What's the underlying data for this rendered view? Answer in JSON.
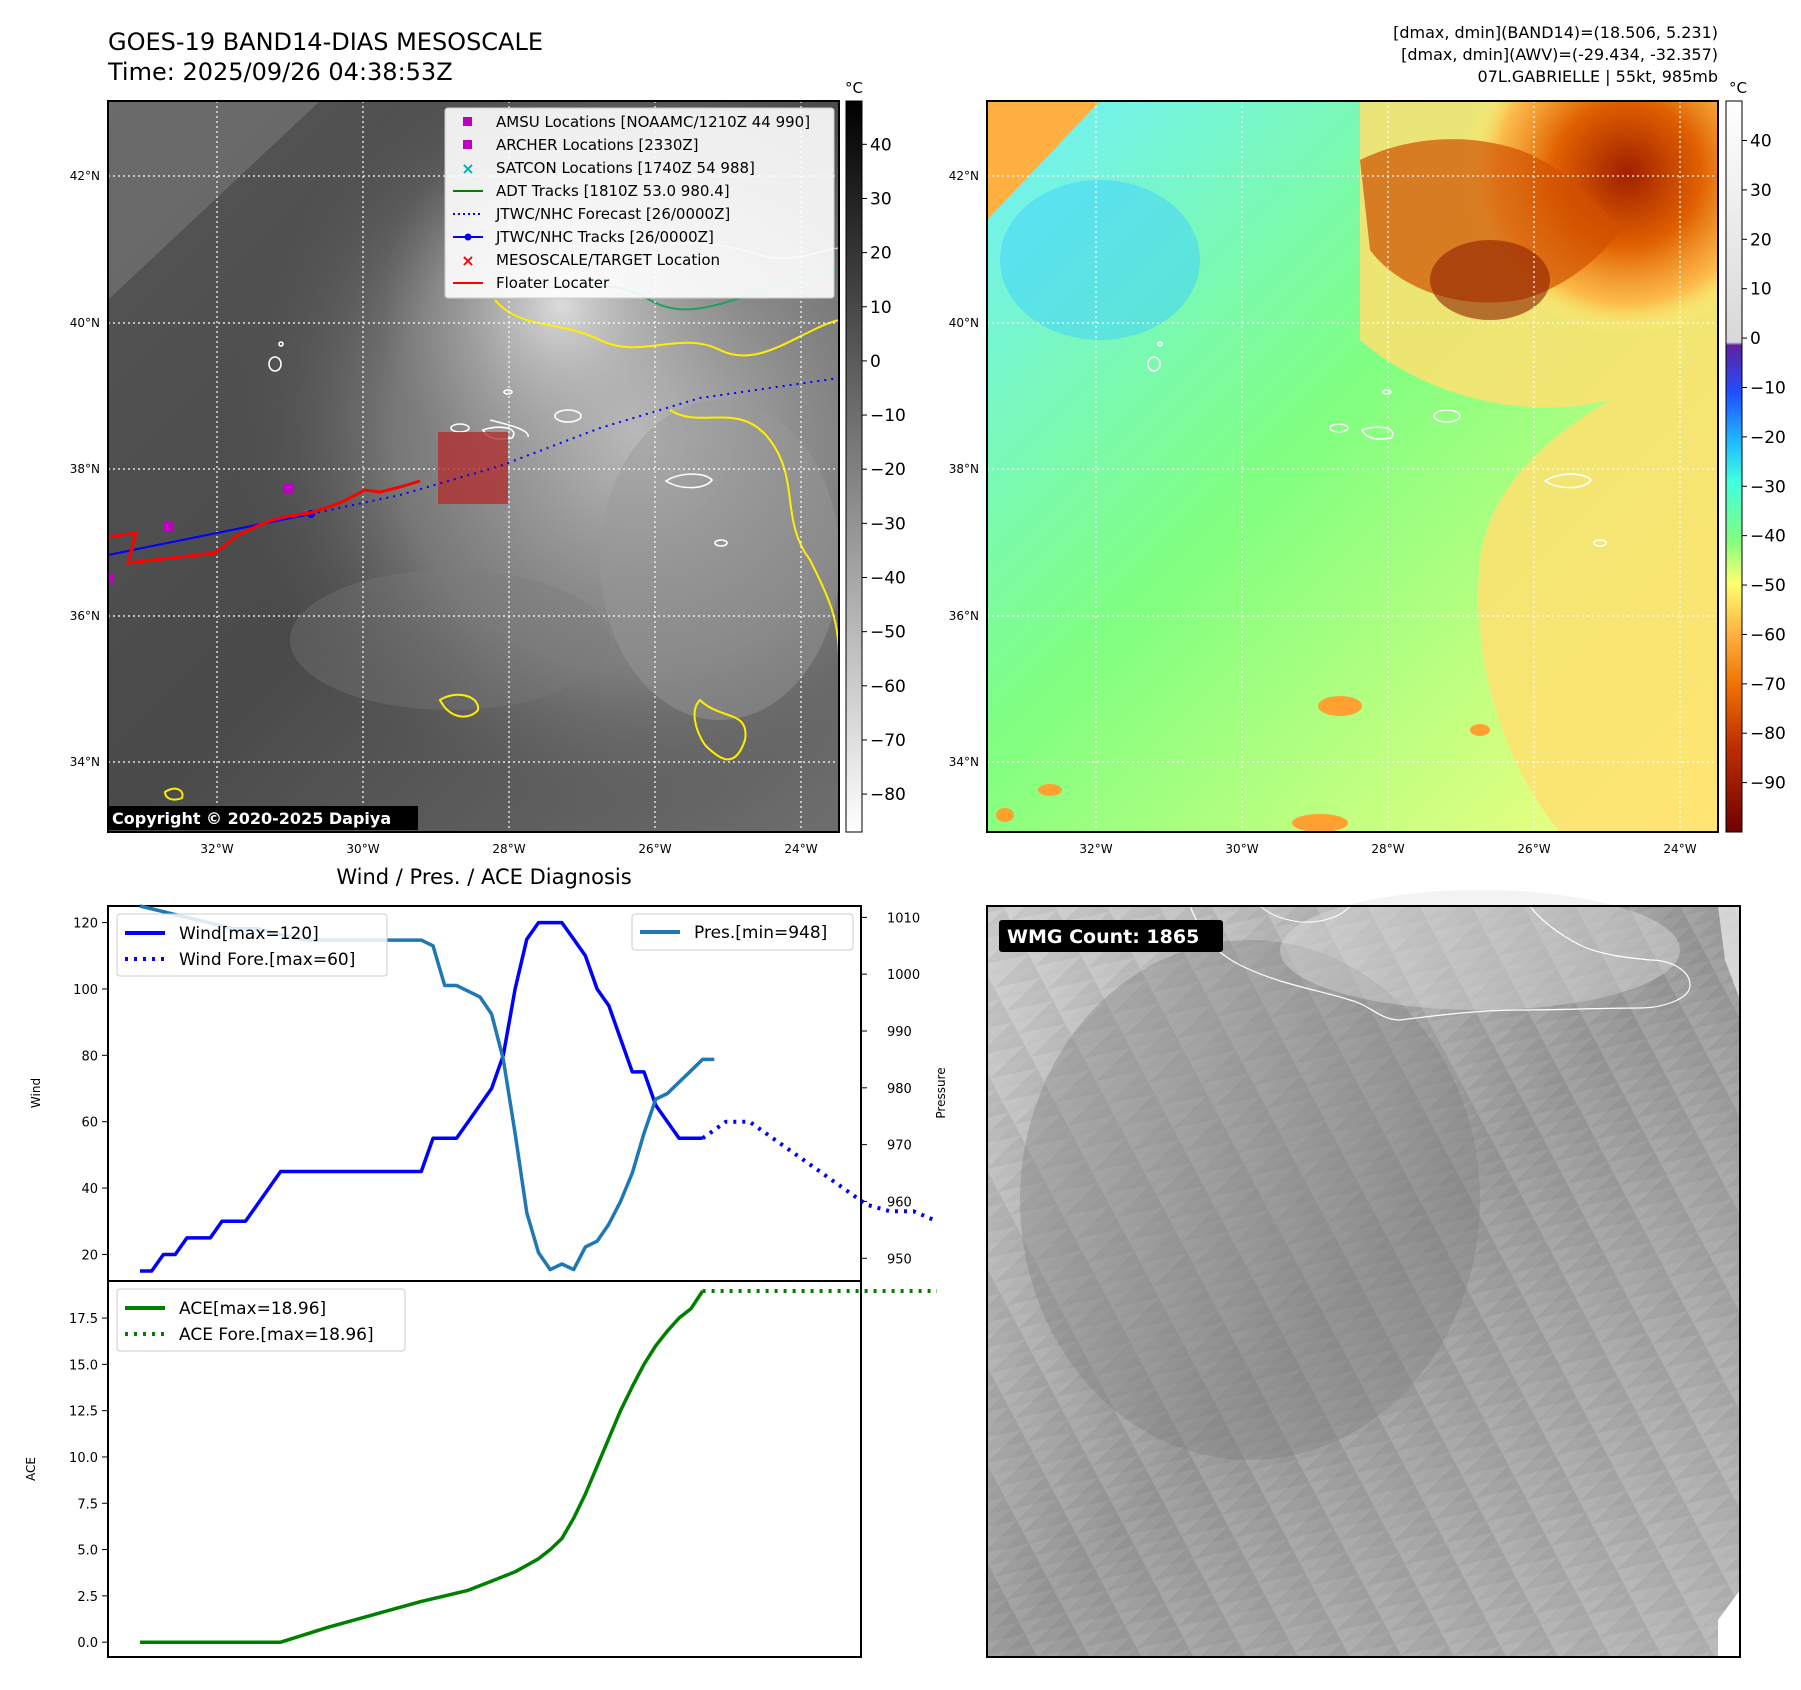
{
  "header": {
    "title_line1": "GOES-19 BAND14-DIAS MESOSCALE",
    "title_line2": "Time: 2025/09/26 04:38:53Z",
    "info_line1": "[dmax, dmin](BAND14)=(18.506, 5.231)",
    "info_line2": "[dmax, dmin](AWV)=(-29.434, -32.357)",
    "info_line3": "07L.GABRIELLE | 55kt, 985mb"
  },
  "map_axes": {
    "lon_ticks": [
      "32°W",
      "30°W",
      "28°W",
      "26°W",
      "24°W"
    ],
    "lat_ticks": [
      "42°N",
      "40°N",
      "38°N",
      "36°N",
      "34°N"
    ]
  },
  "colorbar_left": {
    "unit": "°C",
    "ticks": [
      "40",
      "30",
      "20",
      "10",
      "0",
      "−10",
      "−20",
      "−30",
      "−40",
      "−50",
      "−60",
      "−70",
      "−80"
    ]
  },
  "colorbar_right": {
    "unit": "°C",
    "ticks": [
      "40",
      "30",
      "20",
      "10",
      "0",
      "−10",
      "−20",
      "−30",
      "−40",
      "−50",
      "−60",
      "−70",
      "−80",
      "−90"
    ]
  },
  "legend": {
    "items": [
      {
        "label": "AMSU Locations [NOAAMC/1210Z 44 990]",
        "color": "#c000c0",
        "marker": "square"
      },
      {
        "label": "ARCHER Locations [2330Z]",
        "color": "#c000c0",
        "marker": "square"
      },
      {
        "label": "SATCON Locations [1740Z 54 988]",
        "color": "#00b0b0",
        "marker": "x"
      },
      {
        "label": "ADT Tracks [1810Z 53.0 980.4]",
        "color": "#008000",
        "marker": "line"
      },
      {
        "label": "JTWC/NHC Forecast [26/0000Z]",
        "color": "#0000ff",
        "marker": "dotted"
      },
      {
        "label": "JTWC/NHC Tracks [26/0000Z]",
        "color": "#0000ff",
        "marker": "line-dot"
      },
      {
        "label": "MESOSCALE/TARGET Location",
        "color": "#ff0000",
        "marker": "x"
      },
      {
        "label": "Floater Locater",
        "color": "#ff0000",
        "marker": "line"
      }
    ]
  },
  "copyright": "Copyright © 2020-2025 Dapiya",
  "wmg": {
    "label": "WMG Count: 1865"
  },
  "chart_data": [
    {
      "type": "line",
      "title": "Wind / Pres. / ACE Diagnosis",
      "ylabel": "Wind",
      "ylabel_right": "Pressure",
      "ylim": [
        12,
        125
      ],
      "ylim_right": [
        946,
        1012
      ],
      "xlim": [
        0,
        34
      ],
      "yticks": [
        20,
        40,
        60,
        80,
        100,
        120
      ],
      "yticks_right": [
        950,
        960,
        970,
        980,
        990,
        1000,
        1010
      ],
      "legend_left": [
        "Wind[max=120]",
        "Wind Fore.[max=60]"
      ],
      "legend_right": [
        "Pres.[min=948]"
      ],
      "series": [
        {
          "name": "Wind[max=120]",
          "color": "#0000ff",
          "style": "solid",
          "x": [
            0,
            0.5,
            1,
            1.5,
            2,
            2.5,
            3,
            3.5,
            4,
            4.5,
            5,
            5.5,
            6,
            6.5,
            7,
            7.5,
            8,
            8.5,
            9,
            9.5,
            10,
            10.5,
            11,
            11.5,
            12,
            12.5,
            13,
            13.5,
            14,
            14.5,
            15,
            15.5,
            16,
            16.5,
            17,
            17.5,
            18,
            18.5,
            19,
            19.5,
            20,
            20.5,
            21,
            21.5,
            22,
            22.5,
            23,
            23.5,
            24
          ],
          "values": [
            15,
            15,
            20,
            20,
            25,
            25,
            25,
            30,
            30,
            30,
            35,
            40,
            45,
            45,
            45,
            45,
            45,
            45,
            45,
            45,
            45,
            45,
            45,
            45,
            45,
            55,
            55,
            55,
            60,
            65,
            70,
            80,
            100,
            115,
            120,
            120,
            120,
            115,
            110,
            100,
            95,
            85,
            75,
            75,
            65,
            60,
            55,
            55,
            55
          ]
        },
        {
          "name": "Wind Fore.[max=60]",
          "color": "#0000ff",
          "style": "dotted",
          "x": [
            24,
            25,
            26,
            27,
            28,
            29,
            30,
            31,
            32,
            33,
            34
          ],
          "values": [
            55,
            60,
            60,
            55,
            50,
            45,
            40,
            35,
            33,
            33,
            30
          ]
        },
        {
          "name": "Pres.[min=948]",
          "color": "#1f77b4",
          "style": "solid",
          "axis": "right",
          "x": [
            0,
            1,
            2,
            3,
            4,
            5,
            6,
            7,
            8,
            9,
            10,
            11,
            12,
            12.5,
            13,
            13.5,
            14,
            14.5,
            15,
            15.5,
            16,
            16.5,
            17,
            17.5,
            18,
            18.5,
            19,
            19.5,
            20,
            20.5,
            21,
            21.5,
            22,
            22.5,
            23,
            23.5,
            24,
            24.5
          ],
          "values": [
            1012,
            1011,
            1010,
            1009,
            1008,
            1008,
            1007,
            1006,
            1006,
            1006,
            1006,
            1006,
            1006,
            1005,
            998,
            998,
            997,
            996,
            993,
            985,
            972,
            958,
            951,
            948,
            949,
            948,
            952,
            953,
            956,
            960,
            965,
            972,
            978,
            979,
            981,
            983,
            985,
            985
          ]
        }
      ]
    },
    {
      "type": "line",
      "ylabel": "ACE",
      "ylim": [
        -0.8,
        19.5
      ],
      "xlim": [
        0,
        34
      ],
      "yticks": [
        0.0,
        2.5,
        5.0,
        7.5,
        10.0,
        12.5,
        15.0,
        17.5
      ],
      "ytick_labels": [
        "0.0",
        "2.5",
        "5.0",
        "7.5",
        "10.0",
        "12.5",
        "15.0",
        "17.5"
      ],
      "legend": [
        "ACE[max=18.96]",
        "ACE Fore.[max=18.96]"
      ],
      "series": [
        {
          "name": "ACE[max=18.96]",
          "color": "#008000",
          "style": "solid",
          "x": [
            0,
            2,
            4,
            6,
            7,
            8,
            10,
            12,
            13,
            14,
            15,
            16,
            17,
            17.5,
            18,
            18.5,
            19,
            19.5,
            20,
            20.5,
            21,
            21.5,
            22,
            22.5,
            23,
            23.5,
            24
          ],
          "values": [
            0,
            0,
            0,
            0,
            0.4,
            0.8,
            1.5,
            2.2,
            2.5,
            2.8,
            3.3,
            3.8,
            4.5,
            5.0,
            5.6,
            6.7,
            8.0,
            9.5,
            11.0,
            12.5,
            13.8,
            15.0,
            16.0,
            16.8,
            17.5,
            18.0,
            18.96
          ]
        },
        {
          "name": "ACE Fore.[max=18.96]",
          "color": "#008000",
          "style": "dotted",
          "x": [
            24,
            34
          ],
          "values": [
            18.96,
            18.96
          ]
        }
      ]
    }
  ]
}
